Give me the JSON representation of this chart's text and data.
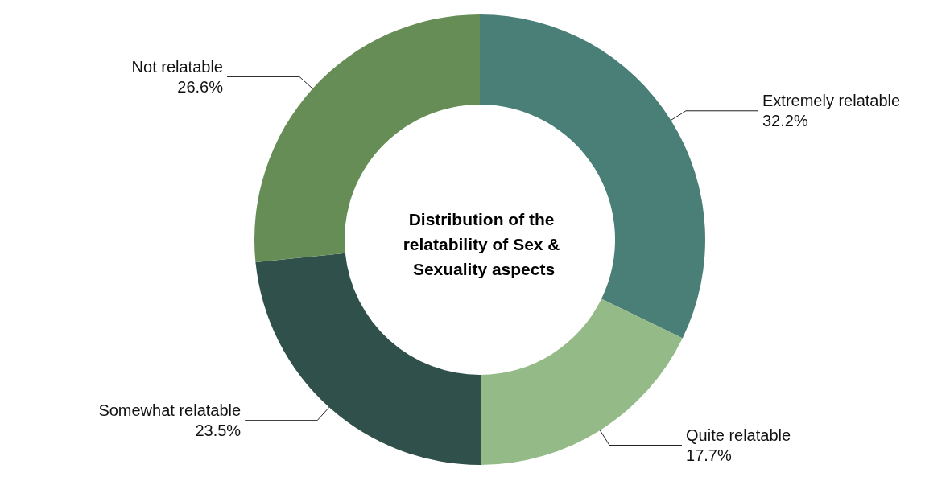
{
  "chart_data": {
    "type": "donut",
    "title": "Distribution of the relatability of Sex & Sexuality aspects",
    "categories": [
      "Extremely relatable",
      "Quite relatable",
      "Somewhat relatable",
      "Not relatable"
    ],
    "values": [
      32.2,
      17.7,
      23.5,
      26.6
    ],
    "value_labels": [
      "32.2%",
      "17.7%",
      "23.5%",
      "26.6%"
    ],
    "colors": [
      "#4a7f78",
      "#94bb87",
      "#2f504b",
      "#668d55"
    ],
    "legend": false
  }
}
